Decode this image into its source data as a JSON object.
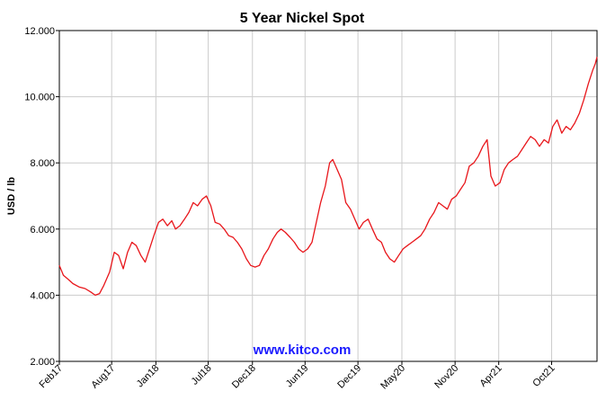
{
  "chart_data": {
    "type": "line",
    "title": "5 Year Nickel Spot",
    "ylabel": "USD / lb",
    "xlabel": "",
    "watermark": "www.kitco.com",
    "ylim": [
      2.0,
      12.0
    ],
    "yticks": [
      "2.000",
      "4.000",
      "6.000",
      "8.000",
      "10.000",
      "12.000"
    ],
    "ytick_values": [
      2.0,
      4.0,
      6.0,
      8.0,
      10.0,
      12.0
    ],
    "xlim": [
      "2017-02-01",
      "2022-03-07"
    ],
    "xticks": [
      {
        "label": "Feb17",
        "date": "2017-02-01"
      },
      {
        "label": "Aug17",
        "date": "2017-08-01"
      },
      {
        "label": "Jan18",
        "date": "2018-01-01"
      },
      {
        "label": "Jul18",
        "date": "2018-07-01"
      },
      {
        "label": "Dec18",
        "date": "2018-12-01"
      },
      {
        "label": "Jun19",
        "date": "2019-06-01"
      },
      {
        "label": "Dec19",
        "date": "2019-12-01"
      },
      {
        "label": "May20",
        "date": "2020-05-01"
      },
      {
        "label": "Nov20",
        "date": "2020-11-01"
      },
      {
        "label": "Apr21",
        "date": "2021-04-01"
      },
      {
        "label": "Oct21",
        "date": "2021-10-01"
      }
    ],
    "grid": true,
    "line_color": "#e8161b",
    "series": [
      {
        "x": [
          "2017-02-01",
          "2017-02-15",
          "2017-03-01",
          "2017-03-20",
          "2017-04-10",
          "2017-05-01",
          "2017-05-20",
          "2017-06-05",
          "2017-06-20",
          "2017-07-05",
          "2017-07-25",
          "2017-08-10",
          "2017-08-25",
          "2017-09-10",
          "2017-09-25",
          "2017-10-10",
          "2017-10-25",
          "2017-11-10",
          "2017-11-25",
          "2017-12-10",
          "2017-12-25",
          "2018-01-10",
          "2018-01-25",
          "2018-02-10",
          "2018-02-25",
          "2018-03-10",
          "2018-03-25",
          "2018-04-10",
          "2018-04-25",
          "2018-05-10",
          "2018-05-25",
          "2018-06-10",
          "2018-06-25",
          "2018-07-10",
          "2018-07-25",
          "2018-08-10",
          "2018-08-25",
          "2018-09-10",
          "2018-09-25",
          "2018-10-10",
          "2018-10-25",
          "2018-11-10",
          "2018-11-25",
          "2018-12-10",
          "2018-12-25",
          "2019-01-10",
          "2019-01-25",
          "2019-02-10",
          "2019-02-25",
          "2019-03-10",
          "2019-03-25",
          "2019-04-10",
          "2019-04-25",
          "2019-05-10",
          "2019-05-25",
          "2019-06-10",
          "2019-06-25",
          "2019-07-10",
          "2019-07-25",
          "2019-08-10",
          "2019-08-25",
          "2019-09-05",
          "2019-09-20",
          "2019-10-05",
          "2019-10-20",
          "2019-11-05",
          "2019-11-20",
          "2019-12-05",
          "2019-12-20",
          "2020-01-05",
          "2020-01-20",
          "2020-02-05",
          "2020-02-20",
          "2020-03-05",
          "2020-03-20",
          "2020-04-05",
          "2020-04-20",
          "2020-05-05",
          "2020-05-20",
          "2020-06-05",
          "2020-06-20",
          "2020-07-05",
          "2020-07-20",
          "2020-08-05",
          "2020-08-20",
          "2020-09-05",
          "2020-09-20",
          "2020-10-05",
          "2020-10-20",
          "2020-11-05",
          "2020-11-20",
          "2020-12-05",
          "2020-12-20",
          "2021-01-05",
          "2021-01-20",
          "2021-02-05",
          "2021-02-20",
          "2021-03-05",
          "2021-03-20",
          "2021-04-05",
          "2021-04-20",
          "2021-05-05",
          "2021-05-20",
          "2021-06-05",
          "2021-06-20",
          "2021-07-05",
          "2021-07-20",
          "2021-08-05",
          "2021-08-20",
          "2021-09-05",
          "2021-09-20",
          "2021-10-05",
          "2021-10-20",
          "2021-11-05",
          "2021-11-20",
          "2021-12-05",
          "2021-12-20",
          "2022-01-05",
          "2022-01-20",
          "2022-02-05",
          "2022-02-20",
          "2022-03-01",
          "2022-03-07"
        ],
        "y": [
          4.9,
          4.6,
          4.5,
          4.35,
          4.25,
          4.2,
          4.1,
          4.0,
          4.05,
          4.3,
          4.7,
          5.3,
          5.2,
          4.8,
          5.3,
          5.6,
          5.5,
          5.2,
          5.0,
          5.4,
          5.8,
          6.2,
          6.3,
          6.1,
          6.25,
          6.0,
          6.1,
          6.3,
          6.5,
          6.8,
          6.7,
          6.9,
          7.0,
          6.7,
          6.2,
          6.15,
          6.0,
          5.8,
          5.75,
          5.6,
          5.4,
          5.1,
          4.9,
          4.85,
          4.9,
          5.2,
          5.4,
          5.7,
          5.9,
          6.0,
          5.9,
          5.75,
          5.6,
          5.4,
          5.3,
          5.4,
          5.6,
          6.2,
          6.8,
          7.3,
          8.0,
          8.1,
          7.8,
          7.5,
          6.8,
          6.6,
          6.3,
          6.0,
          6.2,
          6.3,
          6.0,
          5.7,
          5.6,
          5.3,
          5.1,
          5.0,
          5.2,
          5.4,
          5.5,
          5.6,
          5.7,
          5.8,
          6.0,
          6.3,
          6.5,
          6.8,
          6.7,
          6.6,
          6.9,
          7.0,
          7.2,
          7.4,
          7.9,
          8.0,
          8.2,
          8.5,
          8.7,
          7.6,
          7.3,
          7.4,
          7.8,
          8.0,
          8.1,
          8.2,
          8.4,
          8.6,
          8.8,
          8.7,
          8.5,
          8.7,
          8.6,
          9.1,
          9.3,
          8.9,
          9.1,
          9.0,
          9.2,
          9.5,
          9.9,
          10.4,
          10.8,
          11.0,
          11.2
        ]
      }
    ]
  }
}
